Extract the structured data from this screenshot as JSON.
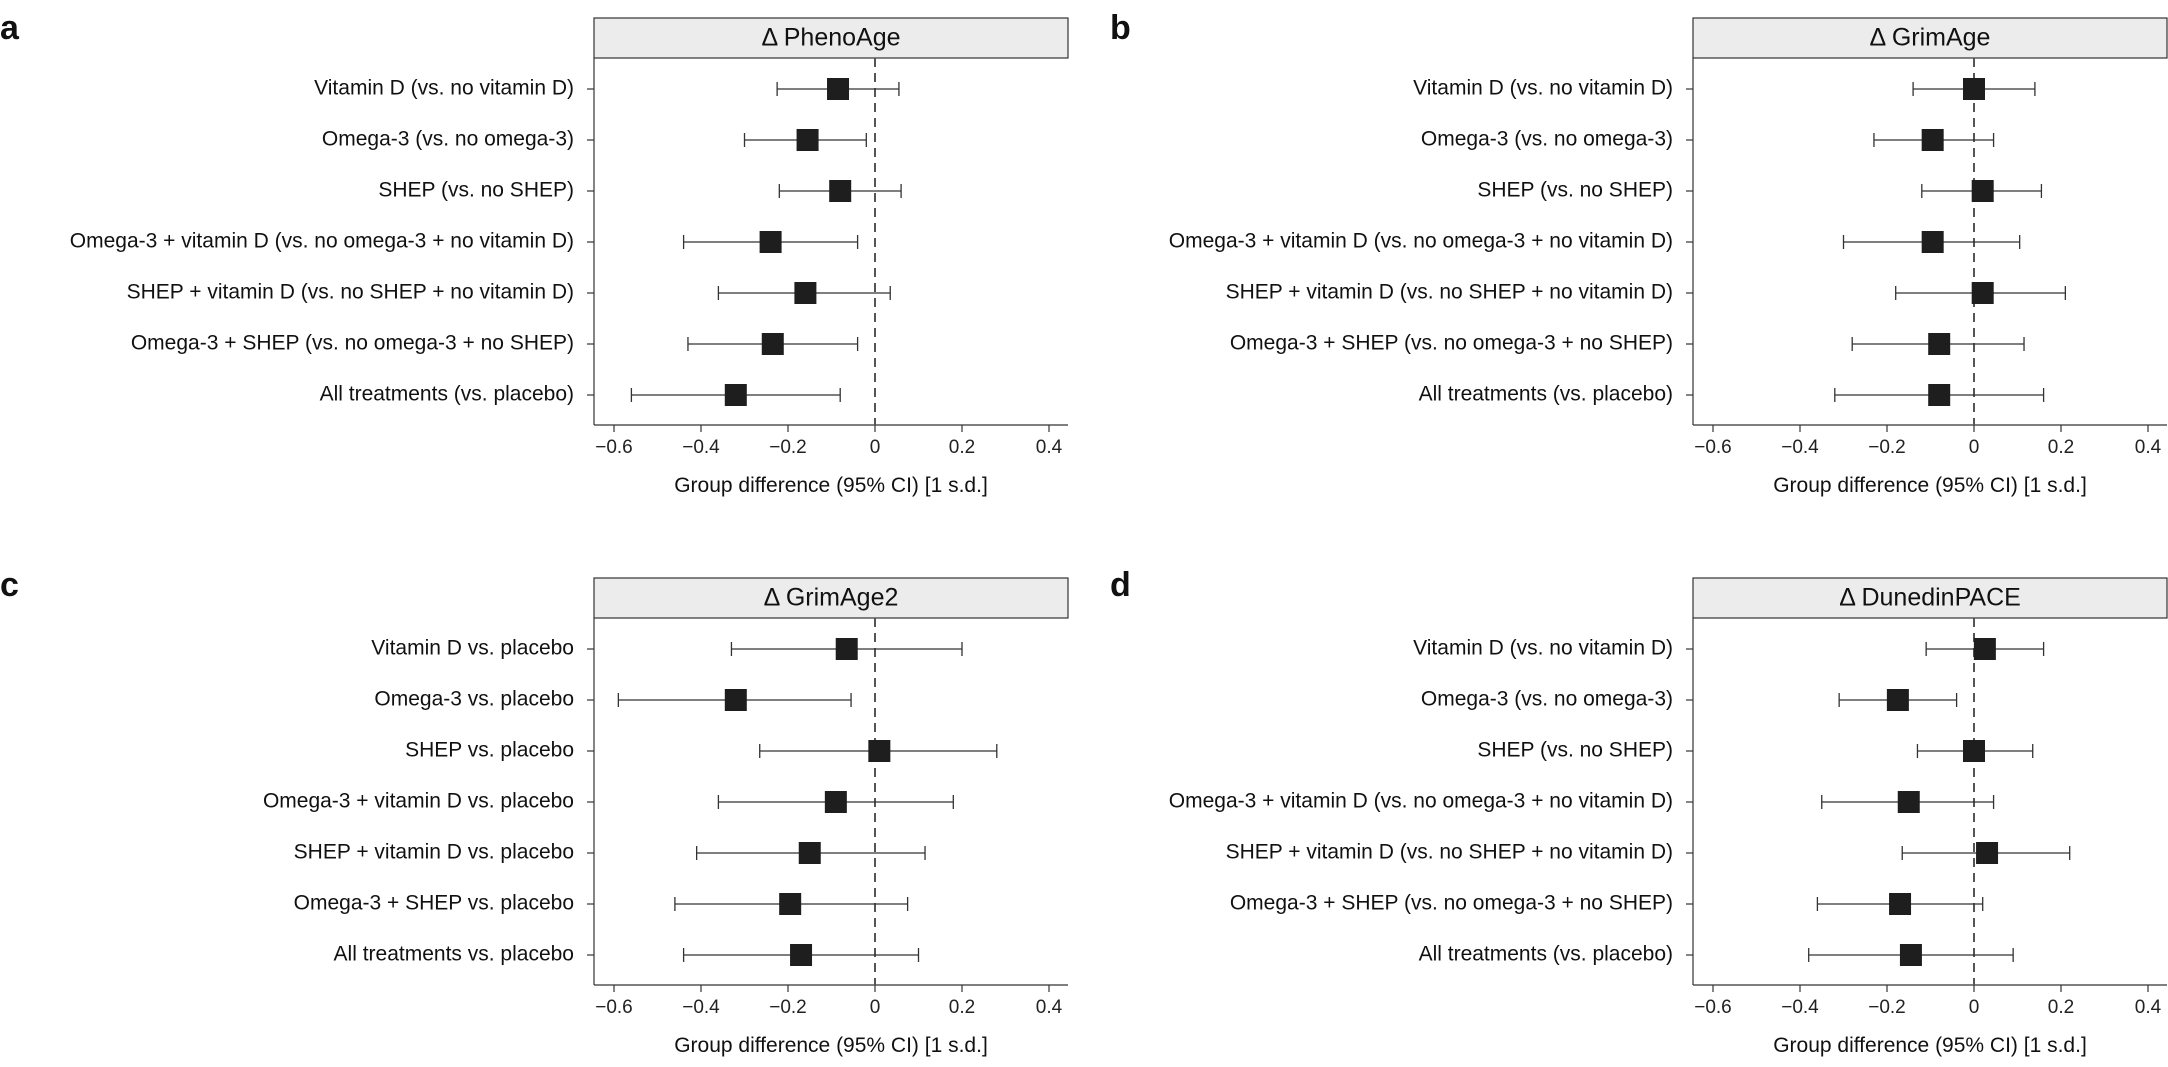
{
  "chart_data": [
    {
      "type": "forest",
      "panel": "a",
      "title": "Δ PhenoAge",
      "xlabel": "Group difference (95% CI) [1 s.d.]",
      "xlim": [
        -0.65,
        0.45
      ],
      "xticks": [
        -0.6,
        -0.4,
        -0.2,
        0,
        0.2,
        0.4
      ],
      "xtick_labels": [
        "−0.6",
        "−0.4",
        "−0.2",
        "0",
        "0.2",
        "0.4"
      ],
      "reference_line": 0,
      "rows": [
        {
          "label": "Vitamin D (vs. no vitamin D)",
          "estimate": -0.085,
          "lower": -0.225,
          "upper": 0.055
        },
        {
          "label": "Omega-3 (vs. no omega-3)",
          "estimate": -0.155,
          "lower": -0.3,
          "upper": -0.02
        },
        {
          "label": "SHEP (vs. no SHEP)",
          "estimate": -0.08,
          "lower": -0.22,
          "upper": 0.06
        },
        {
          "label": "Omega-3 + vitamin D (vs. no omega-3 + no vitamin D)",
          "estimate": -0.24,
          "lower": -0.44,
          "upper": -0.04
        },
        {
          "label": "SHEP + vitamin D (vs. no SHEP + no vitamin D)",
          "estimate": -0.16,
          "lower": -0.36,
          "upper": 0.035
        },
        {
          "label": "Omega-3 + SHEP (vs. no omega-3 + no SHEP)",
          "estimate": -0.235,
          "lower": -0.43,
          "upper": -0.04
        },
        {
          "label": "All treatments (vs. placebo)",
          "estimate": -0.32,
          "lower": -0.56,
          "upper": -0.08
        }
      ]
    },
    {
      "type": "forest",
      "panel": "b",
      "title": "Δ GrimAge",
      "xlabel": "Group difference (95% CI) [1 s.d.]",
      "xlim": [
        -0.65,
        0.45
      ],
      "xticks": [
        -0.6,
        -0.4,
        -0.2,
        0,
        0.2,
        0.4
      ],
      "xtick_labels": [
        "−0.6",
        "−0.4",
        "−0.2",
        "0",
        "0.2",
        "0.4"
      ],
      "reference_line": 0,
      "rows": [
        {
          "label": "Vitamin D (vs. no vitamin D)",
          "estimate": 0.0,
          "lower": -0.14,
          "upper": 0.14
        },
        {
          "label": "Omega-3 (vs. no omega-3)",
          "estimate": -0.095,
          "lower": -0.23,
          "upper": 0.045
        },
        {
          "label": "SHEP (vs. no SHEP)",
          "estimate": 0.02,
          "lower": -0.12,
          "upper": 0.155
        },
        {
          "label": "Omega-3 + vitamin D (vs. no omega-3 + no vitamin D)",
          "estimate": -0.095,
          "lower": -0.3,
          "upper": 0.105
        },
        {
          "label": "SHEP + vitamin D (vs. no SHEP + no vitamin D)",
          "estimate": 0.02,
          "lower": -0.18,
          "upper": 0.21
        },
        {
          "label": "Omega-3 + SHEP (vs. no omega-3 + no SHEP)",
          "estimate": -0.08,
          "lower": -0.28,
          "upper": 0.115
        },
        {
          "label": "All treatments (vs. placebo)",
          "estimate": -0.08,
          "lower": -0.32,
          "upper": 0.16
        }
      ]
    },
    {
      "type": "forest",
      "panel": "c",
      "title": "Δ GrimAge2",
      "xlabel": "Group difference (95% CI) [1 s.d.]",
      "xlim": [
        -0.65,
        0.45
      ],
      "xticks": [
        -0.6,
        -0.4,
        -0.2,
        0,
        0.2,
        0.4
      ],
      "xtick_labels": [
        "−0.6",
        "−0.4",
        "−0.2",
        "0",
        "0.2",
        "0.4"
      ],
      "reference_line": 0,
      "rows": [
        {
          "label": "Vitamin D vs. placebo",
          "estimate": -0.065,
          "lower": -0.33,
          "upper": 0.2
        },
        {
          "label": "Omega-3 vs. placebo",
          "estimate": -0.32,
          "lower": -0.59,
          "upper": -0.055
        },
        {
          "label": "SHEP vs. placebo",
          "estimate": 0.01,
          "lower": -0.265,
          "upper": 0.28
        },
        {
          "label": "Omega-3 + vitamin D vs. placebo",
          "estimate": -0.09,
          "lower": -0.36,
          "upper": 0.18
        },
        {
          "label": "SHEP + vitamin D vs. placebo",
          "estimate": -0.15,
          "lower": -0.41,
          "upper": 0.115
        },
        {
          "label": "Omega-3 + SHEP vs. placebo",
          "estimate": -0.195,
          "lower": -0.46,
          "upper": 0.075
        },
        {
          "label": "All treatments vs. placebo",
          "estimate": -0.17,
          "lower": -0.44,
          "upper": 0.1
        }
      ]
    },
    {
      "type": "forest",
      "panel": "d",
      "title": "Δ DunedinPACE",
      "xlabel": "Group difference (95% CI) [1 s.d.]",
      "xlim": [
        -0.65,
        0.45
      ],
      "xticks": [
        -0.6,
        -0.4,
        -0.2,
        0,
        0.2,
        0.4
      ],
      "xtick_labels": [
        "−0.6",
        "−0.4",
        "−0.2",
        "0",
        "0.2",
        "0.4"
      ],
      "reference_line": 0,
      "rows": [
        {
          "label": "Vitamin D (vs. no vitamin D)",
          "estimate": 0.025,
          "lower": -0.11,
          "upper": 0.16
        },
        {
          "label": "Omega-3 (vs. no omega-3)",
          "estimate": -0.175,
          "lower": -0.31,
          "upper": -0.04
        },
        {
          "label": "SHEP (vs. no SHEP)",
          "estimate": 0.0,
          "lower": -0.13,
          "upper": 0.135
        },
        {
          "label": "Omega-3 + vitamin D (vs. no omega-3 + no vitamin D)",
          "estimate": -0.15,
          "lower": -0.35,
          "upper": 0.045
        },
        {
          "label": "SHEP + vitamin D (vs. no SHEP + no vitamin D)",
          "estimate": 0.03,
          "lower": -0.165,
          "upper": 0.22
        },
        {
          "label": "Omega-3 + SHEP (vs. no omega-3 + no SHEP)",
          "estimate": -0.17,
          "lower": -0.36,
          "upper": 0.02
        },
        {
          "label": "All treatments (vs. placebo)",
          "estimate": -0.145,
          "lower": -0.38,
          "upper": 0.09
        }
      ]
    }
  ],
  "style": {
    "marker_color": "#1e1e1e",
    "line_color": "#333333",
    "title_bar_fill": "#ececec",
    "reference_line_color": "#555555"
  }
}
